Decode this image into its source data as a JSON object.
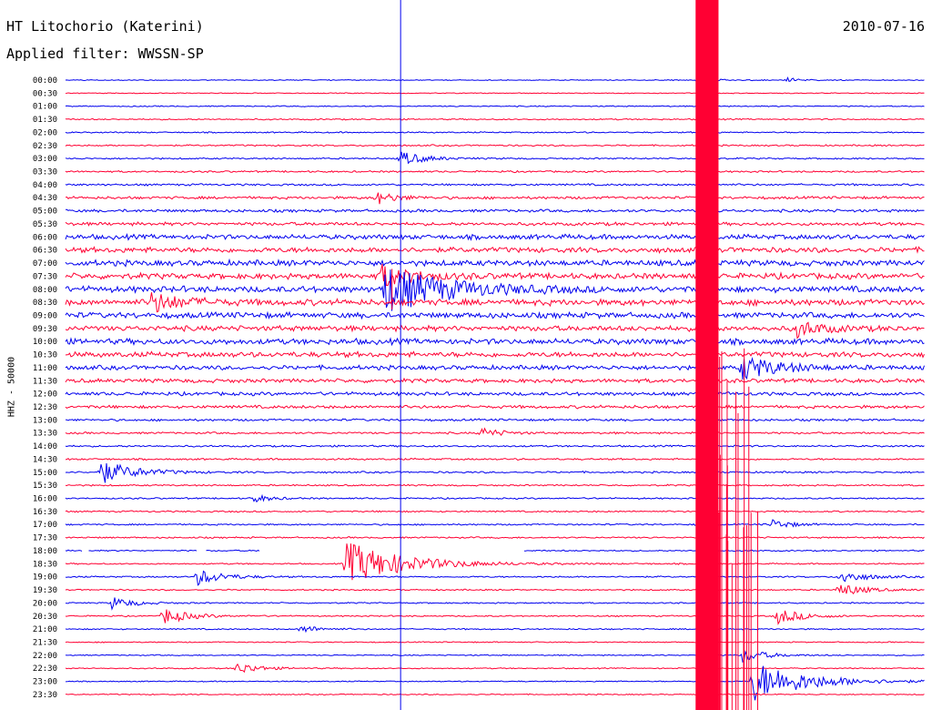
{
  "header": {
    "station": "HT Litochorio (Katerini)",
    "date": "2010-07-16",
    "filter": "Applied filter: WWSSN-SP"
  },
  "chart_data": {
    "type": "line",
    "ylabel": "HHZ - 50000",
    "rows": [
      "00:00",
      "00:30",
      "01:00",
      "01:30",
      "02:00",
      "02:30",
      "03:00",
      "03:30",
      "04:00",
      "04:30",
      "05:00",
      "05:30",
      "06:00",
      "06:30",
      "07:00",
      "07:30",
      "08:00",
      "08:30",
      "09:00",
      "09:30",
      "10:00",
      "10:30",
      "11:00",
      "11:30",
      "12:00",
      "12:30",
      "13:00",
      "13:30",
      "14:00",
      "14:30",
      "15:00",
      "15:30",
      "16:00",
      "16:30",
      "17:00",
      "17:30",
      "18:00",
      "18:30",
      "19:00",
      "19:30",
      "20:00",
      "20:30",
      "21:00",
      "21:30",
      "22:00",
      "22:30",
      "23:00",
      "23:30"
    ],
    "x_range_minutes": [
      0,
      30
    ],
    "colors": {
      "even_rows": "#0000ee",
      "odd_rows": "#ff0033"
    },
    "noise_level": [
      0.4,
      0.4,
      0.5,
      0.6,
      0.6,
      0.7,
      0.7,
      0.8,
      0.9,
      1.2,
      1.3,
      1.5,
      2.2,
      2.4,
      2.6,
      2.6,
      2.8,
      2.8,
      2.6,
      2.4,
      2.6,
      2.4,
      2.0,
      1.8,
      1.6,
      1.4,
      1.0,
      0.9,
      0.8,
      0.8,
      0.8,
      0.7,
      0.7,
      0.7,
      0.7,
      0.7,
      0.6,
      0.6,
      0.7,
      0.6,
      0.6,
      0.6,
      0.6,
      0.5,
      0.5,
      0.5,
      0.5,
      0.5
    ],
    "events": [
      {
        "row": 0,
        "at_minute": 22.1,
        "amplitude": 4
      },
      {
        "row": 0,
        "at_minute": 25.2,
        "amplitude": 3
      },
      {
        "row": 6,
        "at_minute": 11.7,
        "amplitude": 8
      },
      {
        "row": 9,
        "at_minute": 10.8,
        "amplitude": 7
      },
      {
        "row": 15,
        "at_minute": 11.0,
        "amplitude": 12
      },
      {
        "row": 16,
        "at_minute": 11.1,
        "amplitude": 26
      },
      {
        "row": 17,
        "at_minute": 3.0,
        "amplitude": 11
      },
      {
        "row": 19,
        "at_minute": 25.5,
        "amplitude": 9
      },
      {
        "row": 22,
        "at_minute": 23.6,
        "amplitude": 14
      },
      {
        "row": 27,
        "at_minute": 14.5,
        "amplitude": 6
      },
      {
        "row": 30,
        "at_minute": 1.2,
        "amplitude": 13
      },
      {
        "row": 32,
        "at_minute": 6.5,
        "amplitude": 5
      },
      {
        "row": 34,
        "at_minute": 24.6,
        "amplitude": 6
      },
      {
        "row": 37,
        "at_minute": 9.8,
        "amplitude": 24
      },
      {
        "row": 38,
        "at_minute": 4.6,
        "amplitude": 9
      },
      {
        "row": 38,
        "at_minute": 27.0,
        "amplitude": 8
      },
      {
        "row": 39,
        "at_minute": 27.0,
        "amplitude": 8
      },
      {
        "row": 40,
        "at_minute": 1.6,
        "amplitude": 7
      },
      {
        "row": 41,
        "at_minute": 3.4,
        "amplitude": 9
      },
      {
        "row": 41,
        "at_minute": 24.8,
        "amplitude": 9
      },
      {
        "row": 42,
        "at_minute": 8.2,
        "amplitude": 5
      },
      {
        "row": 44,
        "at_minute": 23.6,
        "amplitude": 8
      },
      {
        "row": 45,
        "at_minute": 6.0,
        "amplitude": 7
      },
      {
        "row": 46,
        "at_minute": 24.0,
        "amplitude": 22
      }
    ],
    "gaps": [
      {
        "row": 36,
        "from_minute": 0.6,
        "to_minute": 0.8
      },
      {
        "row": 36,
        "from_minute": 4.6,
        "to_minute": 4.9
      },
      {
        "row": 36,
        "from_minute": 6.8,
        "to_minute": 16.0
      }
    ],
    "vertical_markers": [
      {
        "at_minute": 11.7,
        "color": "#0000ee",
        "from_row": 0,
        "to_row": 47
      },
      {
        "at_minute": 11.4,
        "color": "#ff0033",
        "from_row": 15,
        "to_row": 17
      }
    ],
    "saturated_band": {
      "from_minute": 22.0,
      "to_minute": 22.8,
      "from_row": 0,
      "to_row": 47,
      "color": "#ff0033"
    }
  }
}
